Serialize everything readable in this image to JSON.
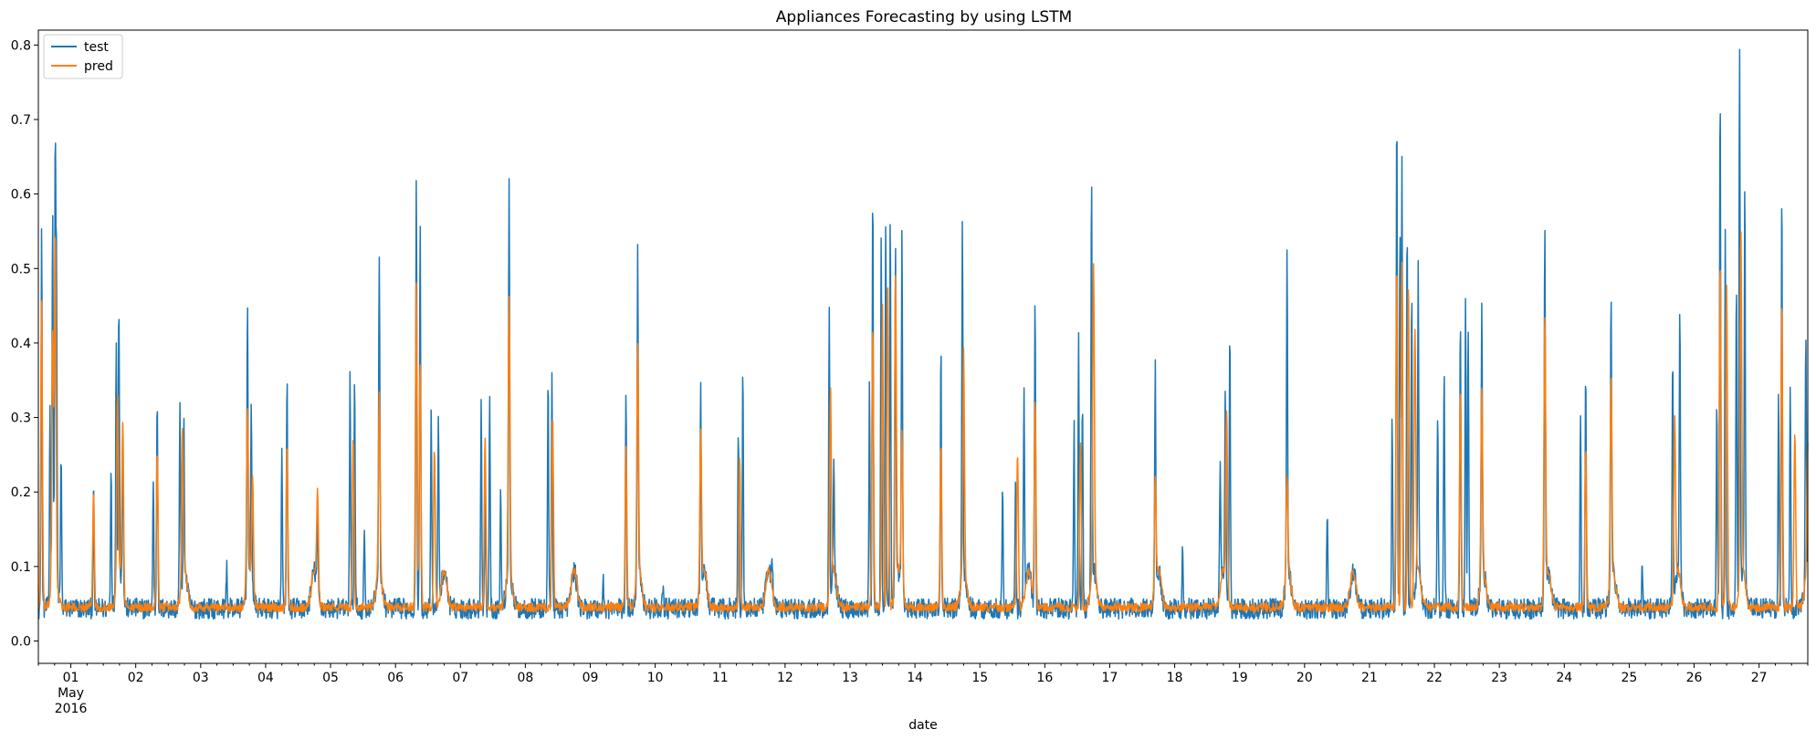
{
  "chart_data": {
    "type": "line",
    "title": "Appliances Forecasting by using LSTM",
    "xlabel": "date",
    "ylabel": "",
    "ylim": [
      -0.03,
      0.82
    ],
    "yticks": [
      0.0,
      0.1,
      0.2,
      0.3,
      0.4,
      0.5,
      0.6,
      0.7,
      0.8
    ],
    "ytick_labels": [
      "0.0",
      "0.1",
      "0.2",
      "0.3",
      "0.4",
      "0.5",
      "0.6",
      "0.7",
      "0.8"
    ],
    "xlim": [
      0.5,
      27.75
    ],
    "xticks": [
      1,
      2,
      3,
      4,
      5,
      6,
      7,
      8,
      9,
      10,
      11,
      12,
      13,
      14,
      15,
      16,
      17,
      18,
      19,
      20,
      21,
      22,
      23,
      24,
      25,
      26,
      27
    ],
    "xtick_labels": [
      "01",
      "02",
      "03",
      "04",
      "05",
      "06",
      "07",
      "08",
      "09",
      "10",
      "11",
      "12",
      "13",
      "14",
      "15",
      "16",
      "17",
      "18",
      "19",
      "20",
      "21",
      "22",
      "23",
      "24",
      "25",
      "26",
      "27"
    ],
    "xtick_sublabels": [
      "May",
      "2016"
    ],
    "x_unit": "day of May 2016",
    "legend": {
      "placement": "top-left",
      "entries": [
        "test",
        "pred"
      ]
    },
    "grid": false,
    "baseline": 0.045,
    "series": [
      {
        "name": "test",
        "color": "#1f77b4",
        "spikes": [
          [
            0.55,
            0.56
          ],
          [
            0.68,
            0.3
          ],
          [
            0.72,
            0.55
          ],
          [
            0.76,
            0.62
          ],
          [
            0.78,
            0.44
          ],
          [
            0.85,
            0.25
          ],
          [
            1.35,
            0.21
          ],
          [
            1.62,
            0.24
          ],
          [
            1.7,
            0.39
          ],
          [
            1.74,
            0.41
          ],
          [
            1.8,
            0.28
          ],
          [
            2.27,
            0.22
          ],
          [
            2.33,
            0.34
          ],
          [
            2.68,
            0.3
          ],
          [
            2.74,
            0.25
          ],
          [
            3.4,
            0.1
          ],
          [
            3.72,
            0.42
          ],
          [
            3.78,
            0.28
          ],
          [
            4.25,
            0.25
          ],
          [
            4.33,
            0.36
          ],
          [
            4.8,
            0.15
          ],
          [
            5.3,
            0.36
          ],
          [
            5.37,
            0.36
          ],
          [
            5.52,
            0.15
          ],
          [
            5.75,
            0.48
          ],
          [
            6.32,
            0.62
          ],
          [
            6.38,
            0.56
          ],
          [
            6.55,
            0.31
          ],
          [
            6.66,
            0.31
          ],
          [
            7.32,
            0.33
          ],
          [
            7.38,
            0.23
          ],
          [
            7.45,
            0.33
          ],
          [
            7.62,
            0.2
          ],
          [
            7.75,
            0.58
          ],
          [
            8.35,
            0.36
          ],
          [
            8.41,
            0.37
          ],
          [
            9.2,
            0.08
          ],
          [
            9.55,
            0.34
          ],
          [
            9.73,
            0.49
          ],
          [
            10.12,
            0.08
          ],
          [
            10.7,
            0.32
          ],
          [
            11.28,
            0.29
          ],
          [
            11.35,
            0.37
          ],
          [
            11.8,
            0.1
          ],
          [
            12.68,
            0.43
          ],
          [
            12.75,
            0.19
          ],
          [
            13.3,
            0.34
          ],
          [
            13.35,
            0.61
          ],
          [
            13.48,
            0.55
          ],
          [
            13.55,
            0.57
          ],
          [
            13.62,
            0.57
          ],
          [
            13.7,
            0.5
          ],
          [
            13.8,
            0.52
          ],
          [
            14.4,
            0.39
          ],
          [
            14.73,
            0.52
          ],
          [
            15.35,
            0.2
          ],
          [
            15.55,
            0.23
          ],
          [
            15.68,
            0.33
          ],
          [
            15.85,
            0.46
          ],
          [
            16.45,
            0.29
          ],
          [
            16.52,
            0.41
          ],
          [
            16.58,
            0.33
          ],
          [
            16.72,
            0.58
          ],
          [
            17.7,
            0.35
          ],
          [
            18.12,
            0.13
          ],
          [
            18.7,
            0.22
          ],
          [
            18.78,
            0.3
          ],
          [
            18.85,
            0.42
          ],
          [
            19.73,
            0.48
          ],
          [
            20.35,
            0.17
          ],
          [
            21.35,
            0.3
          ],
          [
            21.42,
            0.73
          ],
          [
            21.47,
            0.56
          ],
          [
            21.5,
            0.66
          ],
          [
            21.58,
            0.57
          ],
          [
            21.65,
            0.48
          ],
          [
            21.75,
            0.45
          ],
          [
            22.05,
            0.31
          ],
          [
            22.15,
            0.37
          ],
          [
            22.4,
            0.45
          ],
          [
            22.48,
            0.45
          ],
          [
            22.52,
            0.43
          ],
          [
            22.73,
            0.4
          ],
          [
            23.7,
            0.54
          ],
          [
            24.25,
            0.31
          ],
          [
            24.33,
            0.36
          ],
          [
            24.72,
            0.44
          ],
          [
            25.2,
            0.11
          ],
          [
            25.67,
            0.38
          ],
          [
            25.78,
            0.4
          ],
          [
            26.35,
            0.32
          ],
          [
            26.4,
            0.76
          ],
          [
            26.48,
            0.55
          ],
          [
            26.65,
            0.48
          ],
          [
            26.7,
            0.79
          ],
          [
            26.78,
            0.57
          ],
          [
            27.3,
            0.33
          ],
          [
            27.35,
            0.61
          ],
          [
            27.48,
            0.34
          ],
          [
            27.72,
            0.39
          ]
        ]
      },
      {
        "name": "pred",
        "color": "#ff7f0e",
        "spikes": [
          [
            0.55,
            0.46
          ],
          [
            0.72,
            0.37
          ],
          [
            0.76,
            0.5
          ],
          [
            1.35,
            0.2
          ],
          [
            1.72,
            0.29
          ],
          [
            1.8,
            0.27
          ],
          [
            2.33,
            0.26
          ],
          [
            2.72,
            0.25
          ],
          [
            3.72,
            0.28
          ],
          [
            3.8,
            0.2
          ],
          [
            4.33,
            0.26
          ],
          [
            4.8,
            0.18
          ],
          [
            5.35,
            0.27
          ],
          [
            5.75,
            0.28
          ],
          [
            6.32,
            0.48
          ],
          [
            6.38,
            0.38
          ],
          [
            6.6,
            0.26
          ],
          [
            7.38,
            0.27
          ],
          [
            7.75,
            0.41
          ],
          [
            8.42,
            0.3
          ],
          [
            9.55,
            0.26
          ],
          [
            9.73,
            0.35
          ],
          [
            10.7,
            0.26
          ],
          [
            11.3,
            0.25
          ],
          [
            12.7,
            0.31
          ],
          [
            13.35,
            0.42
          ],
          [
            13.5,
            0.45
          ],
          [
            13.58,
            0.49
          ],
          [
            13.7,
            0.47
          ],
          [
            13.8,
            0.26
          ],
          [
            14.4,
            0.26
          ],
          [
            14.75,
            0.34
          ],
          [
            15.58,
            0.25
          ],
          [
            15.85,
            0.32
          ],
          [
            16.55,
            0.27
          ],
          [
            16.75,
            0.46
          ],
          [
            17.7,
            0.2
          ],
          [
            18.8,
            0.29
          ],
          [
            19.73,
            0.18
          ],
          [
            21.42,
            0.51
          ],
          [
            21.5,
            0.51
          ],
          [
            21.6,
            0.48
          ],
          [
            21.7,
            0.4
          ],
          [
            22.4,
            0.34
          ],
          [
            22.73,
            0.29
          ],
          [
            23.7,
            0.41
          ],
          [
            24.33,
            0.26
          ],
          [
            24.72,
            0.32
          ],
          [
            25.7,
            0.28
          ],
          [
            26.4,
            0.51
          ],
          [
            26.5,
            0.48
          ],
          [
            26.72,
            0.52
          ],
          [
            27.35,
            0.45
          ],
          [
            27.55,
            0.28
          ],
          [
            27.75,
            0.21
          ]
        ]
      }
    ]
  }
}
